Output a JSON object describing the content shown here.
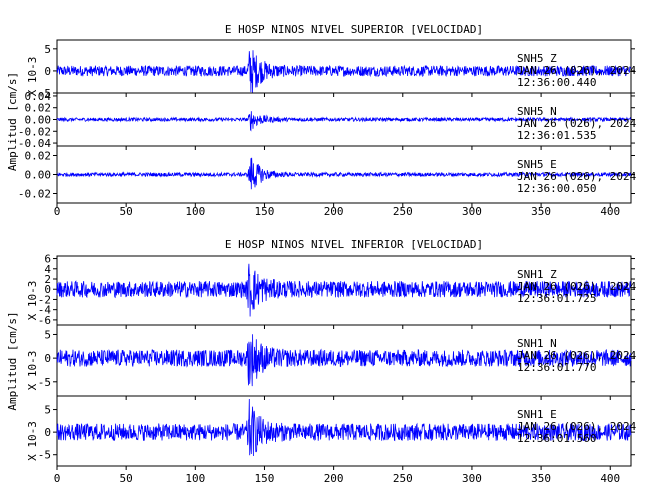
{
  "chart_data": [
    {
      "type": "line",
      "title": "E HOSP NINOS NIVEL SUPERIOR [VELOCIDAD]",
      "ylabel": "Amplitud [cm/s]",
      "x_ticks": [
        0,
        50,
        100,
        150,
        200,
        250,
        300,
        350,
        400
      ],
      "xlim": [
        0,
        415
      ],
      "grid": false,
      "line_color": "#0000ff",
      "traces": [
        {
          "station": "SNH5",
          "component": "Z",
          "date": "JAN 26 (026), 2024",
          "time": "12:36:00.440",
          "scale": "X 10-3",
          "ylim": [
            -5,
            7
          ],
          "y_ticks": [
            -5,
            0,
            5
          ],
          "noise_amplitude": 1.2,
          "peak_time": 139.5,
          "peak_amplitude": 6.5
        },
        {
          "station": "SNH5",
          "component": "N",
          "date": "JAN 26 (026), 2024",
          "time": "12:36:01.535",
          "scale": "",
          "ylim": [
            -0.045,
            0.045
          ],
          "y_ticks": [
            -0.04,
            -0.02,
            0.0,
            0.02,
            0.04
          ],
          "tick_format": 2,
          "noise_amplitude": 0.003,
          "peak_time": 140,
          "peak_amplitude": 0.02
        },
        {
          "station": "SNH5",
          "component": "E",
          "date": "JAN 26 (026), 2024",
          "time": "12:36:00.050",
          "scale": "",
          "ylim": [
            -0.03,
            0.03
          ],
          "y_ticks": [
            -0.02,
            0.0,
            0.02
          ],
          "tick_format": 2,
          "noise_amplitude": 0.002,
          "peak_time": 140,
          "peak_amplitude": 0.022
        }
      ]
    },
    {
      "type": "line",
      "title": "E HOSP NINOS NIVEL INFERIOR [VELOCIDAD]",
      "ylabel": "Amplitud [cm/s]",
      "x_ticks": [
        0,
        50,
        100,
        150,
        200,
        250,
        300,
        350,
        400
      ],
      "xlim": [
        0,
        415
      ],
      "grid": false,
      "line_color": "#0000ff",
      "traces": [
        {
          "station": "SNH1",
          "component": "Z",
          "date": "JAN 26 (026), 2024",
          "time": "12:36:01.725",
          "scale": "X 10-3",
          "ylim": [
            -7,
            6.5
          ],
          "y_ticks": [
            -6,
            -4,
            -2,
            0,
            2,
            4,
            6
          ],
          "noise_amplitude": 1.6,
          "peak_time": 139,
          "peak_amplitude": 6.3
        },
        {
          "station": "SNH1",
          "component": "N",
          "date": "JAN 26 (026), 2024",
          "time": "12:36:01.770",
          "scale": "X 10-3",
          "ylim": [
            -8,
            7
          ],
          "y_ticks": [
            -5,
            0,
            5
          ],
          "noise_amplitude": 1.8,
          "peak_time": 139,
          "peak_amplitude": 7.5
        },
        {
          "station": "SNH1",
          "component": "E",
          "date": "JAN 26 (026), 2024",
          "time": "12:36:01.560",
          "scale": "X 10-3",
          "ylim": [
            -7.5,
            8
          ],
          "y_ticks": [
            -5,
            0,
            5
          ],
          "noise_amplitude": 1.9,
          "peak_time": 139,
          "peak_amplitude": 7.5
        }
      ]
    }
  ]
}
